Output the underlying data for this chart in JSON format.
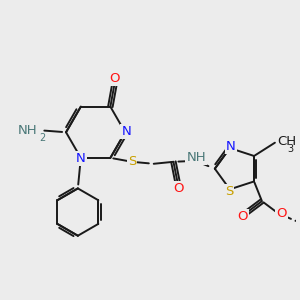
{
  "background_color": "#ececec",
  "bond_color": "#1a1a1a",
  "atom_colors": {
    "N": "#1414ff",
    "O": "#ff1414",
    "S": "#c8a000",
    "NH": "#4a7878",
    "C": "#1a1a1a"
  },
  "font_size": 9.5,
  "line_width": 1.4,
  "figsize": [
    3.0,
    3.0
  ],
  "dpi": 100
}
